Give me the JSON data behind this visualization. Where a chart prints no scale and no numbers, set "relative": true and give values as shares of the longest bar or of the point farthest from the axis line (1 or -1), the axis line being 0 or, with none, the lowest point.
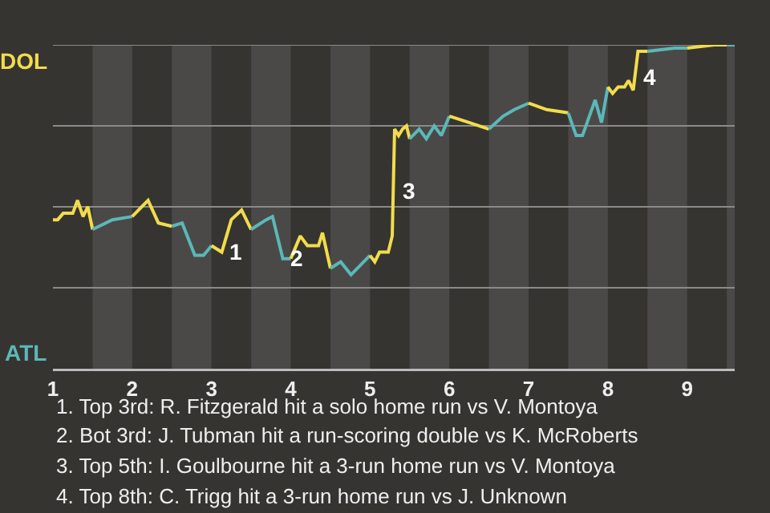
{
  "chart_data": {
    "type": "line",
    "relative": true,
    "series": [
      {
        "color": "#f2dc4b",
        "x": [
          1,
          1.06,
          1.13,
          1.25,
          1.31,
          1.38,
          1.44,
          1.5
        ],
        "values": [
          0.46,
          0.46,
          0.48,
          0.48,
          0.52,
          0.47,
          0.5,
          0.43
        ]
      },
      {
        "color": "#5bb8b8",
        "x": [
          1.5,
          1.75,
          2
        ],
        "values": [
          0.43,
          0.46,
          0.47
        ]
      },
      {
        "color": "#f2dc4b",
        "x": [
          2,
          2.2,
          2.33,
          2.5
        ],
        "values": [
          0.47,
          0.52,
          0.45,
          0.44
        ]
      },
      {
        "color": "#5bb8b8",
        "x": [
          2.5,
          2.63,
          2.79,
          2.9,
          3
        ],
        "values": [
          0.44,
          0.45,
          0.35,
          0.35,
          0.38
        ]
      },
      {
        "color": "#f2dc4b",
        "x": [
          3,
          3.13,
          3.25,
          3.38,
          3.5
        ],
        "values": [
          0.38,
          0.36,
          0.46,
          0.49,
          0.43
        ]
      },
      {
        "color": "#5bb8b8",
        "x": [
          3.5,
          3.69,
          3.77,
          3.9,
          4
        ],
        "values": [
          0.43,
          0.46,
          0.47,
          0.34,
          0.34
        ]
      },
      {
        "color": "#f2dc4b",
        "x": [
          4,
          4.12,
          4.21,
          4.35,
          4.4,
          4.5
        ],
        "values": [
          0.34,
          0.41,
          0.38,
          0.38,
          0.42,
          0.31
        ]
      },
      {
        "color": "#5bb8b8",
        "x": [
          4.5,
          4.63,
          4.76,
          5
        ],
        "values": [
          0.31,
          0.33,
          0.29,
          0.35
        ]
      },
      {
        "color": "#f2dc4b",
        "x": [
          5,
          5.06,
          5.12,
          5.23,
          5.28,
          5.31,
          5.36,
          5.41,
          5.46,
          5.5
        ],
        "values": [
          0.35,
          0.33,
          0.36,
          0.36,
          0.41,
          0.74,
          0.72,
          0.74,
          0.75,
          0.71
        ]
      },
      {
        "color": "#5bb8b8",
        "x": [
          5.5,
          5.62,
          5.71,
          5.81,
          5.9,
          6
        ],
        "values": [
          0.71,
          0.74,
          0.71,
          0.75,
          0.72,
          0.78
        ]
      },
      {
        "color": "#f2dc4b",
        "x": [
          6,
          6.25,
          6.5
        ],
        "values": [
          0.78,
          0.76,
          0.74
        ]
      },
      {
        "color": "#5bb8b8",
        "x": [
          6.5,
          6.68,
          6.82,
          7
        ],
        "values": [
          0.74,
          0.78,
          0.8,
          0.82
        ]
      },
      {
        "color": "#f2dc4b",
        "x": [
          7,
          7.23,
          7.5
        ],
        "values": [
          0.82,
          0.8,
          0.79
        ]
      },
      {
        "color": "#5bb8b8",
        "x": [
          7.5,
          7.6,
          7.68,
          7.84,
          7.92,
          8
        ],
        "values": [
          0.79,
          0.72,
          0.72,
          0.83,
          0.76,
          0.87
        ]
      },
      {
        "color": "#f2dc4b",
        "x": [
          8,
          8.06,
          8.13,
          8.21,
          8.26,
          8.32,
          8.38,
          8.5
        ],
        "values": [
          0.87,
          0.85,
          0.87,
          0.87,
          0.89,
          0.86,
          0.98,
          0.98
        ]
      },
      {
        "color": "#5bb8b8",
        "x": [
          8.5,
          8.84,
          9
        ],
        "values": [
          0.98,
          0.99,
          0.99
        ]
      },
      {
        "color": "#f2dc4b",
        "x": [
          9,
          9.34,
          9.5
        ],
        "values": [
          0.99,
          1,
          1
        ]
      },
      {
        "color": "#5bb8b8",
        "x": [
          9.5,
          9.6
        ],
        "values": [
          1,
          1
        ]
      }
    ],
    "xlim": [
      1,
      9.6
    ],
    "xticks": [
      1,
      2,
      3,
      4,
      5,
      6,
      7,
      8,
      9
    ],
    "bands": [
      {
        "axis": "x",
        "from": 1.5,
        "to": 2,
        "color": "#4b4947"
      },
      {
        "axis": "x",
        "from": 2.5,
        "to": 3,
        "color": "#4b4947"
      },
      {
        "axis": "x",
        "from": 3.5,
        "to": 4,
        "color": "#4b4947"
      },
      {
        "axis": "x",
        "from": 4.5,
        "to": 5,
        "color": "#4b4947"
      },
      {
        "axis": "x",
        "from": 5.5,
        "to": 6,
        "color": "#4b4947"
      },
      {
        "axis": "x",
        "from": 6.5,
        "to": 7,
        "color": "#4b4947"
      },
      {
        "axis": "x",
        "from": 7.5,
        "to": 8,
        "color": "#4b4947"
      },
      {
        "axis": "x",
        "from": 8.5,
        "to": 9,
        "color": "#4b4947"
      },
      {
        "axis": "x",
        "from": 9.5,
        "to": 9.6,
        "color": "#4b4947"
      }
    ],
    "ref_lines": [
      {
        "axis": "y",
        "value": 0.25,
        "color": "#8a8a8a"
      },
      {
        "axis": "y",
        "value": 0.5,
        "color": "#8a8a8a"
      },
      {
        "axis": "y",
        "value": 0.75,
        "color": "#8a8a8a"
      },
      {
        "axis": "y",
        "value": 1,
        "color": "#8a8a8a"
      }
    ],
    "marker": "none",
    "line_style": "solid",
    "annotations": [
      "DOL",
      "ATL",
      {
        "text": "1",
        "x": 3.13,
        "y": 0.36
      },
      {
        "text": "2",
        "x": 3.9,
        "y": 0.34
      },
      {
        "text": "3",
        "x": 5.3,
        "y": 0.55
      },
      {
        "text": "4",
        "x": 8.35,
        "y": 0.9
      },
      "1. Top 3rd: R. Fitzgerald hit a solo home run vs V. Montoya",
      "2. Bot 3rd: J. Tubman hit a run-scoring double vs K. McRoberts",
      "3. Top 5th: I. Goulbourne hit a 3-run home run vs V. Montoya",
      "4. Top 8th: C. Trigg hit a 3-run home run vs J. Unknown"
    ]
  }
}
